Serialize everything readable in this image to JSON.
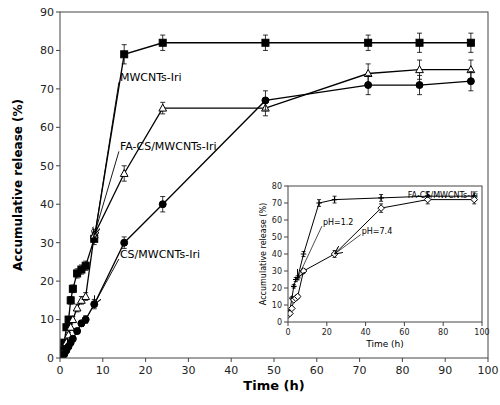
{
  "chart_data": [
    {
      "type": "line",
      "xlabel": "Time (h)",
      "ylabel": "Accumulative release (%)",
      "xlim": [
        0,
        100
      ],
      "ylim": [
        0,
        90
      ],
      "xticks": [
        0,
        10,
        20,
        30,
        40,
        50,
        60,
        70,
        80,
        90,
        100
      ],
      "yticks": [
        0,
        10,
        20,
        30,
        40,
        50,
        60,
        70,
        80,
        90
      ],
      "series": [
        {
          "color": "black",
          "marker": "square",
          "x": [
            0.5,
            1,
            1.5,
            2,
            2.5,
            3,
            4,
            5,
            6,
            8,
            15,
            24,
            48,
            72,
            84,
            96
          ],
          "values": [
            2,
            4,
            8,
            10,
            15,
            18,
            22,
            23,
            24,
            31,
            79,
            82,
            82,
            82,
            82,
            82
          ],
          "errors": [
            0.3,
            0.5,
            0.8,
            0.8,
            1.0,
            1.0,
            1.2,
            1.2,
            1.2,
            1.5,
            2.5,
            2.0,
            2.0,
            2.0,
            2.5,
            2.5
          ]
        },
        {
          "color": "black",
          "marker": "triangle-open",
          "x": [
            0.5,
            1,
            1.5,
            2,
            2.5,
            3,
            4,
            5,
            6,
            8,
            15,
            24,
            48,
            72,
            84,
            96
          ],
          "values": [
            1,
            2,
            4,
            6,
            8,
            10,
            13,
            15,
            16,
            32,
            48,
            65,
            65,
            74,
            75,
            75
          ],
          "errors": [
            0.2,
            0.3,
            0.5,
            0.6,
            0.8,
            0.8,
            1.0,
            1.0,
            1.0,
            1.5,
            2.0,
            1.5,
            2.0,
            2.5,
            2.5,
            2.5
          ]
        },
        {
          "color": "black",
          "marker": "circle",
          "x": [
            0.5,
            1,
            1.5,
            2,
            2.5,
            3,
            4,
            5,
            6,
            8,
            15,
            24,
            48,
            72,
            84,
            96
          ],
          "values": [
            0.5,
            1,
            2,
            3,
            4,
            5,
            7,
            9,
            10,
            14,
            30,
            40,
            67,
            71,
            71,
            72
          ],
          "errors": [
            0.2,
            0.3,
            0.3,
            0.4,
            0.5,
            0.5,
            0.7,
            0.8,
            1.0,
            1.2,
            1.5,
            2.0,
            2.5,
            2.5,
            2.5,
            2.5
          ]
        }
      ],
      "annotations": [
        {
          "text": "MWCNTs-Iri",
          "x": 8,
          "y": 31,
          "text_x": 14,
          "text_y": 72
        },
        {
          "text": "FA-CS/MWCNTs-Iri",
          "x": 8,
          "y": 32,
          "text_x": 14,
          "text_y": 54
        },
        {
          "text": "CS/MWCNTs-Iri",
          "x": 8,
          "y": 14,
          "text_x": 14,
          "text_y": 26
        }
      ]
    },
    {
      "type": "line",
      "title": "FA-CS/MWCNTs-Iri",
      "xlabel": "Time (h)",
      "ylabel": "Accumulative release (%)",
      "xlim": [
        0,
        100
      ],
      "ylim": [
        0,
        80
      ],
      "xticks": [
        0,
        20,
        40,
        60,
        80,
        100
      ],
      "yticks": [
        0,
        10,
        20,
        30,
        40,
        50,
        60,
        70,
        80
      ],
      "series": [
        {
          "color": "black",
          "marker": "plus",
          "x": [
            0,
            1,
            2,
            3,
            4,
            5,
            8,
            16,
            24,
            48,
            72,
            96
          ],
          "values": [
            4,
            7,
            14,
            21,
            25,
            26,
            40,
            70,
            72,
            73,
            74,
            74
          ],
          "errors": [
            0.3,
            0.5,
            0.8,
            1.0,
            1.2,
            1.2,
            1.5,
            2.0,
            2.0,
            2.0,
            2.5,
            2.5
          ]
        },
        {
          "color": "black",
          "marker": "diamond-open",
          "x": [
            0,
            1,
            2,
            3,
            4,
            5,
            8,
            24,
            48,
            72,
            96
          ],
          "values": [
            4,
            5,
            8,
            13,
            14,
            15,
            30,
            40,
            67,
            72,
            72
          ],
          "errors": [
            0.3,
            0.4,
            0.5,
            0.8,
            1.0,
            1.0,
            1.2,
            2.0,
            2.5,
            2.5,
            2.5
          ]
        }
      ],
      "annotations": [
        {
          "text": "pH=1.2",
          "x": 5,
          "y": 26,
          "text_x": 18,
          "text_y": 57
        },
        {
          "text": "pH=7.4",
          "x": 24,
          "y": 40,
          "text_x": 38,
          "text_y": 52
        }
      ]
    }
  ]
}
